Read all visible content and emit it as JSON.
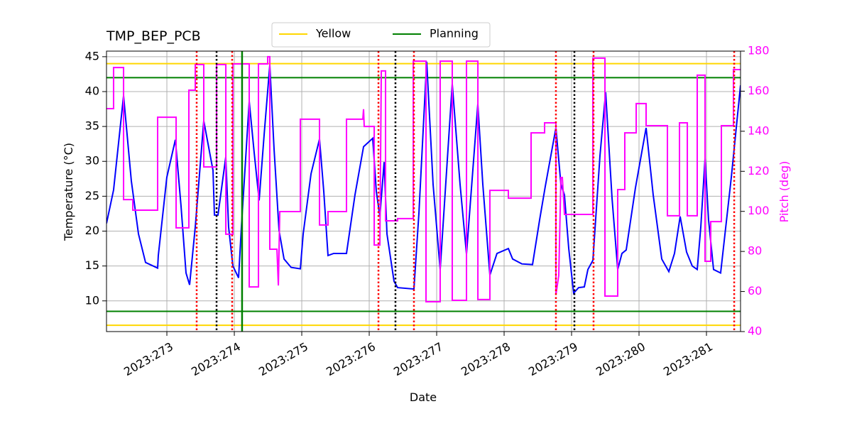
{
  "chart_data": {
    "type": "line",
    "title": "TMP_BEP_PCB",
    "xlabel": "Date",
    "ylabel": "Temperature (°C)",
    "y2label": "Pitch (deg)",
    "xlim": [
      272.105,
      281.505
    ],
    "ylim": [
      5.6,
      45.8
    ],
    "y2lim": [
      40,
      180
    ],
    "xticks": [
      {
        "value": 273,
        "label": "2023:273"
      },
      {
        "value": 274,
        "label": "2023:274"
      },
      {
        "value": 275,
        "label": "2023:275"
      },
      {
        "value": 276,
        "label": "2023:276"
      },
      {
        "value": 277,
        "label": "2023:277"
      },
      {
        "value": 278,
        "label": "2023:278"
      },
      {
        "value": 279,
        "label": "2023:279"
      },
      {
        "value": 280,
        "label": "2023:280"
      },
      {
        "value": 281,
        "label": "2023:281"
      }
    ],
    "yticks": [
      10,
      15,
      20,
      25,
      30,
      35,
      40,
      45
    ],
    "y2ticks": [
      40,
      60,
      80,
      100,
      120,
      140,
      160,
      180
    ],
    "grid": true,
    "series": [
      {
        "color": "#0000ff",
        "axis": "y",
        "x": [
          272.105,
          272.21,
          272.358,
          272.473,
          272.579,
          272.684,
          272.863,
          272.873,
          272.999,
          273.126,
          273.21,
          273.284,
          273.337,
          273.421,
          273.547,
          273.684,
          273.705,
          273.758,
          273.873,
          273.915,
          273.979,
          274.063,
          274.105,
          274.221,
          274.294,
          274.368,
          274.442,
          274.526,
          274.589,
          274.663,
          274.737,
          274.842,
          274.979,
          275.021,
          275.137,
          275.263,
          275.326,
          275.389,
          275.473,
          275.663,
          275.789,
          275.916,
          276.052,
          276.105,
          276.158,
          276.221,
          276.263,
          276.368,
          276.421,
          276.663,
          276.737,
          276.852,
          276.947,
          277.052,
          277.231,
          277.347,
          277.442,
          277.61,
          277.684,
          277.789,
          277.894,
          278.063,
          278.126,
          278.263,
          278.421,
          278.526,
          278.61,
          278.768,
          278.842,
          278.894,
          278.958,
          279.031,
          279.105,
          279.189,
          279.242,
          279.316,
          279.421,
          279.505,
          279.6,
          279.684,
          279.747,
          279.81,
          279.947,
          280.105,
          280.21,
          280.337,
          280.442,
          280.526,
          280.61,
          280.705,
          280.789,
          280.863,
          280.916,
          280.979,
          281.031,
          281.105,
          281.21,
          281.368,
          281.505
        ],
        "values": [
          21.1,
          25.9,
          39.4,
          27.2,
          19.6,
          15.5,
          14.7,
          16.5,
          27.7,
          33.1,
          23.6,
          14.0,
          12.3,
          20.6,
          35.8,
          28.7,
          22.3,
          22.3,
          30.6,
          20.6,
          15.0,
          13.3,
          20.6,
          38.6,
          31.3,
          24.4,
          33.8,
          43.8,
          31.8,
          20.1,
          16.0,
          14.8,
          14.6,
          19.6,
          28.2,
          33.2,
          25.7,
          16.5,
          16.8,
          16.8,
          25.2,
          32.1,
          33.3,
          25.7,
          22.1,
          29.9,
          19.6,
          12.8,
          11.9,
          11.7,
          22.6,
          44.3,
          26.7,
          14.5,
          41.1,
          26.7,
          16.7,
          38.2,
          26.7,
          13.7,
          16.8,
          17.5,
          16.0,
          15.3,
          15.2,
          21.6,
          26.4,
          34.8,
          26.7,
          25.2,
          17.5,
          11.1,
          11.9,
          12.0,
          14.5,
          15.8,
          30.8,
          39.9,
          24.7,
          14.5,
          16.8,
          17.3,
          26.2,
          34.8,
          25.2,
          16.0,
          14.2,
          16.8,
          22.1,
          17.0,
          15.0,
          14.5,
          20.6,
          30.4,
          21.6,
          14.5,
          14.0,
          27.7,
          40.9
        ]
      },
      {
        "color": "#ff00ff",
        "axis": "y2",
        "x": [
          272.105,
          272.21,
          272.21,
          272.358,
          272.358,
          272.495,
          272.495,
          272.863,
          272.863,
          273.137,
          273.137,
          273.326,
          273.326,
          273.421,
          273.421,
          273.547,
          273.547,
          273.737,
          273.737,
          273.874,
          273.874,
          273.979,
          273.979,
          274.221,
          274.221,
          274.358,
          274.358,
          274.495,
          274.495,
          274.526,
          274.526,
          274.632,
          274.653,
          274.674,
          274.979,
          274.979,
          275.263,
          275.263,
          275.389,
          275.389,
          275.663,
          275.663,
          275.905,
          275.916,
          275.926,
          276.074,
          276.074,
          276.158,
          276.179,
          276.242,
          276.242,
          276.421,
          276.421,
          276.653,
          276.653,
          276.842,
          276.842,
          277.052,
          277.052,
          277.231,
          277.231,
          277.442,
          277.442,
          277.611,
          277.611,
          277.789,
          277.789,
          278.063,
          278.063,
          278.4,
          278.4,
          278.6,
          278.6,
          278.768,
          278.768,
          278.81,
          278.842,
          278.863,
          278.895,
          279.316,
          279.316,
          279.495,
          279.495,
          279.684,
          279.684,
          279.789,
          279.789,
          279.958,
          279.958,
          280.105,
          280.105,
          280.421,
          280.421,
          280.6,
          280.6,
          280.716,
          280.716,
          280.863,
          280.863,
          280.979,
          280.979,
          281.063,
          281.063,
          281.221,
          281.221,
          281.4,
          281.4,
          281.505
        ],
        "values": [
          151.3,
          151.3,
          171.8,
          171.8,
          105.9,
          105.9,
          100.6,
          100.6,
          147.0,
          147.0,
          91.8,
          91.8,
          160.5,
          160.5,
          173.3,
          173.3,
          122.2,
          122.2,
          173.3,
          173.3,
          88.6,
          88.6,
          173.6,
          173.6,
          62.3,
          62.3,
          173.6,
          173.6,
          177.2,
          177.2,
          81.1,
          81.1,
          63.0,
          99.9,
          99.9,
          146.0,
          146.0,
          93.2,
          93.2,
          99.9,
          99.9,
          146.0,
          146.0,
          151.0,
          142.4,
          142.4,
          83.2,
          83.2,
          170.1,
          170.1,
          95.3,
          95.3,
          96.4,
          96.4,
          175.0,
          175.0,
          54.9,
          54.9,
          175.0,
          175.0,
          55.6,
          55.6,
          175.0,
          175.0,
          56.0,
          56.0,
          110.5,
          110.5,
          106.6,
          106.6,
          139.2,
          139.2,
          144.2,
          144.2,
          58.4,
          68.0,
          116.9,
          116.9,
          98.5,
          98.5,
          176.5,
          176.5,
          57.7,
          57.7,
          110.9,
          110.9,
          139.2,
          139.2,
          153.8,
          153.8,
          142.8,
          142.8,
          97.8,
          97.8,
          144.2,
          144.2,
          97.8,
          97.8,
          168.0,
          168.0,
          75.1,
          75.1,
          94.9,
          94.9,
          142.8,
          142.8,
          170.8,
          170.8
        ]
      }
    ],
    "hlines": [
      {
        "name": "Yellow",
        "color": "#ffd700",
        "values": [
          44,
          6.5
        ]
      },
      {
        "name": "Planning",
        "color": "#008000",
        "values": [
          42,
          8.5
        ]
      }
    ],
    "vlines": [
      {
        "color": "#008000",
        "style": "solid",
        "x": [
          274.115
        ]
      },
      {
        "color": "#000000",
        "style": "dotted",
        "x": [
          273.737,
          276.389,
          279.042
        ]
      },
      {
        "color": "#ff0000",
        "style": "dotted",
        "x": [
          273.442,
          273.968,
          276.137,
          276.663,
          278.768,
          279.326,
          281.411
        ]
      }
    ]
  }
}
